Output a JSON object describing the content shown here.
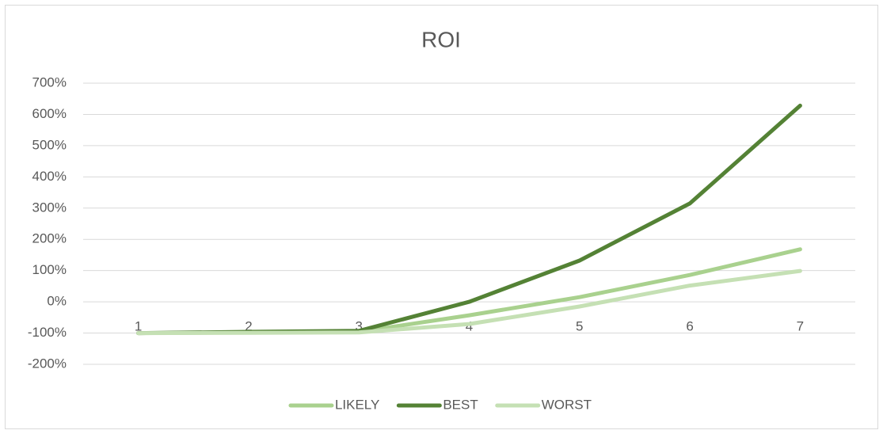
{
  "chart_data": {
    "type": "line",
    "title": "ROI",
    "categories": [
      "1",
      "2",
      "3",
      "4",
      "5",
      "6",
      "7"
    ],
    "series": [
      {
        "name": "LIKELY",
        "color": "#a9d18e",
        "values": [
          -100,
          -98,
          -96,
          -43,
          15,
          86,
          168
        ]
      },
      {
        "name": "BEST",
        "color": "#548235",
        "values": [
          -100,
          -96,
          -93,
          0,
          132,
          315,
          628
        ]
      },
      {
        "name": "WORST",
        "color": "#c5e0b4",
        "values": [
          -100,
          -99,
          -98,
          -71,
          -15,
          52,
          99
        ]
      }
    ],
    "ylim": [
      -200,
      700
    ],
    "yticks": [
      {
        "value": -200,
        "label": "-200%"
      },
      {
        "value": -100,
        "label": "-100%"
      },
      {
        "value": 0,
        "label": "0%"
      },
      {
        "value": 100,
        "label": "100%"
      },
      {
        "value": 200,
        "label": "200%"
      },
      {
        "value": 300,
        "label": "300%"
      },
      {
        "value": 400,
        "label": "400%"
      },
      {
        "value": 500,
        "label": "500%"
      },
      {
        "value": 600,
        "label": "600%"
      },
      {
        "value": 700,
        "label": "700%"
      }
    ],
    "grid": true,
    "legend": "bottom"
  }
}
